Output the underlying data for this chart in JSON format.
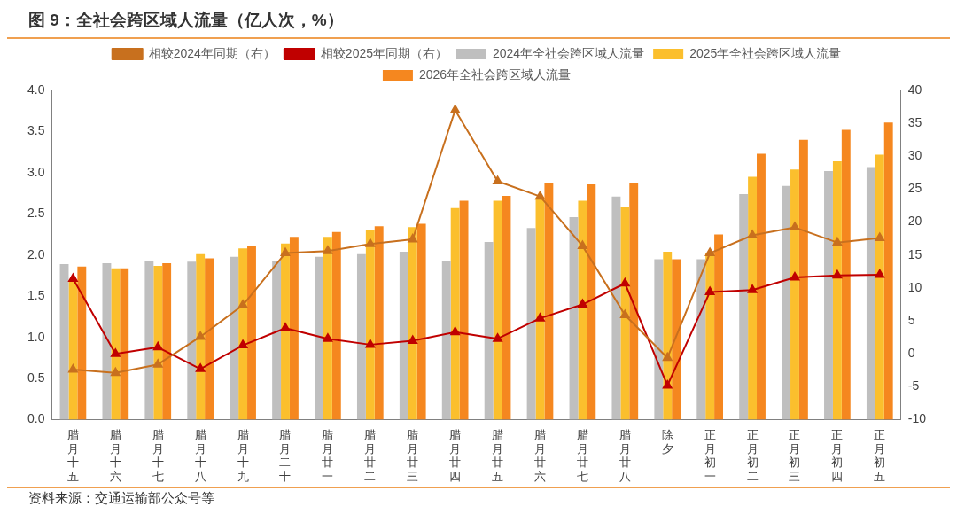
{
  "chart_data": {
    "type": "bar",
    "title": "图 9：全社会跨区域人流量（亿人次，%）",
    "categories": [
      "腊月十五",
      "腊月十六",
      "腊月十七",
      "腊月十八",
      "腊月十九",
      "腊月二十",
      "腊月廿一",
      "腊月廿二",
      "腊月廿三",
      "腊月廿四",
      "腊月廿五",
      "腊月廿六",
      "腊月廿七",
      "腊月廿八",
      "除夕",
      "正月初一",
      "正月初二",
      "正月初三",
      "正月初四",
      "正月初五"
    ],
    "series": [
      {
        "name": "2024年全社会跨区域人流量",
        "color": "#bfbfbf",
        "values": [
          1.89,
          1.9,
          1.93,
          1.92,
          1.98,
          1.93,
          1.98,
          2.01,
          2.04,
          1.93,
          2.16,
          2.33,
          2.46,
          2.71,
          1.95,
          1.95,
          2.74,
          2.84,
          3.02,
          3.07
        ]
      },
      {
        "name": "2025年全社会跨区域人流量",
        "color": "#fbbf2d",
        "values": [
          1.7,
          1.84,
          1.87,
          2.01,
          2.08,
          2.14,
          2.22,
          2.31,
          2.34,
          2.57,
          2.66,
          2.7,
          2.66,
          2.58,
          2.04,
          2.02,
          2.95,
          3.04,
          3.14,
          3.22
        ]
      },
      {
        "name": "2026年全社会跨区域人流量",
        "color": "#f5871f",
        "values": [
          1.86,
          1.84,
          1.9,
          1.96,
          2.11,
          2.22,
          2.28,
          2.35,
          2.38,
          2.66,
          2.72,
          2.88,
          2.86,
          2.87,
          1.95,
          2.25,
          3.23,
          3.4,
          3.52,
          3.61
        ]
      },
      {
        "name": "相较2024年同期（右）",
        "type": "line",
        "axis": "y2",
        "color": "#c8701e",
        "values": [
          -2.4,
          -2.9,
          -1.6,
          2.6,
          7.4,
          15.3,
          15.6,
          16.7,
          17.4,
          37.0,
          26.2,
          23.9,
          16.4,
          5.9,
          -0.6,
          15.3,
          18.0,
          19.2,
          16.9,
          17.6
        ]
      },
      {
        "name": "相较2025年同期（右）",
        "type": "line",
        "axis": "y2",
        "color": "#c00000",
        "values": [
          11.4,
          0.0,
          1.0,
          -2.3,
          1.3,
          3.9,
          2.3,
          1.4,
          2.0,
          3.3,
          2.3,
          5.4,
          7.5,
          10.7,
          -4.8,
          9.4,
          9.7,
          11.6,
          11.9,
          12.0
        ]
      }
    ],
    "ylim": [
      0,
      4
    ],
    "yticks": [
      {
        "value": 0,
        "label": "0.0"
      },
      {
        "value": 0.5,
        "label": "0.5"
      },
      {
        "value": 1,
        "label": "1.0"
      },
      {
        "value": 1.5,
        "label": "1.5"
      },
      {
        "value": 2,
        "label": "2.0"
      },
      {
        "value": 2.5,
        "label": "2.5"
      },
      {
        "value": 3,
        "label": "3.0"
      },
      {
        "value": 3.5,
        "label": "3.5"
      },
      {
        "value": 4,
        "label": "4.0"
      }
    ],
    "y2lim": [
      -10,
      40
    ],
    "y2ticks": [
      -10,
      -5,
      0,
      5,
      10,
      15,
      20,
      25,
      30,
      35,
      40
    ],
    "grid": false,
    "legend": "top",
    "marker": "triangle",
    "line_style": "solid",
    "annotations": [
      "资料来源：交通运输部公众号等"
    ]
  }
}
